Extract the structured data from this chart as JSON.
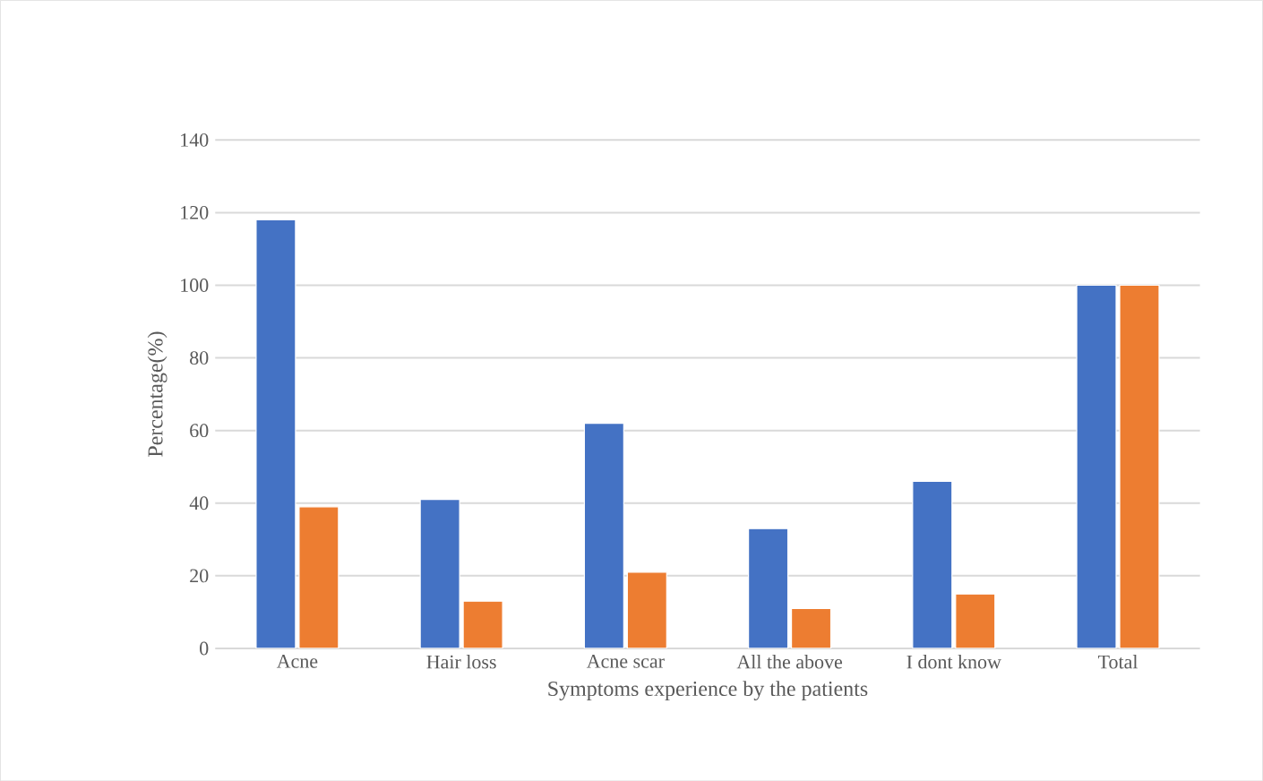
{
  "chart_data": {
    "type": "bar",
    "xlabel": "Symptoms experience by the patients",
    "ylabel": "Percentage(%)",
    "categories": [
      "Acne",
      "Hair loss",
      "Acne scar",
      "All the above",
      "I dont know",
      "Total"
    ],
    "series": [
      {
        "color": "#4472c4",
        "values": [
          118,
          41,
          62,
          33,
          46,
          100
        ]
      },
      {
        "color": "#ed7d31",
        "values": [
          39,
          13,
          21,
          11,
          15,
          100
        ]
      }
    ],
    "ylim": [
      0,
      140
    ],
    "yticks": [
      0,
      20,
      40,
      60,
      80,
      100,
      120,
      140
    ],
    "grid": "y"
  }
}
